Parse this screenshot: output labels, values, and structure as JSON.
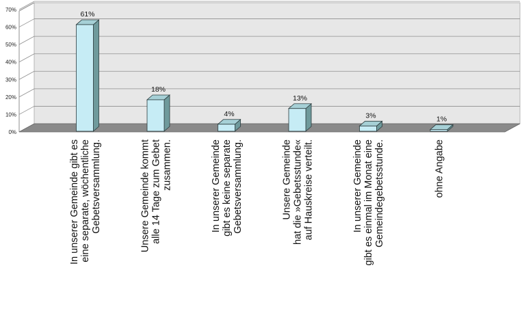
{
  "chart_data": {
    "type": "bar",
    "categories": [
      [
        "In unserer Gemeinde gibt es",
        "eine separate, wöchentliche",
        "Gebetsversammlung."
      ],
      [
        "Unsere Gemeinde kommt",
        "alle 14 Tage zum Gebet",
        "zusammen."
      ],
      [
        "In unserer Gemeinde",
        "gibt es keine separate",
        "Gebetsversammlung."
      ],
      [
        "Unsere Gemeinde",
        "hat die »Gebetsstunde«",
        "auf Hauskreise verteilt."
      ],
      [
        "In unserer Gemeinde",
        "gibt es einmal im Monat eine",
        "Gemeindegebetsstunde."
      ],
      [
        "ohne Angabe"
      ]
    ],
    "values": [
      61,
      18,
      4,
      13,
      3,
      1
    ],
    "data_labels": [
      "61%",
      "18%",
      "4%",
      "13%",
      "3%",
      "1%"
    ],
    "y_ticks": [
      "0%",
      "10%",
      "20%",
      "30%",
      "40%",
      "50%",
      "60%",
      "70%"
    ],
    "ylim": [
      0,
      70
    ],
    "grid": true,
    "legend": "none",
    "colors": {
      "bar_front": "#c6ecf5",
      "bar_side": "#6f9a9c",
      "bar_top": "#a6d0d6",
      "bar_stroke": "#2a3a3c",
      "wall": "#e7e7e7",
      "floor": "#8a8a8a",
      "grid": "#8f8f8f"
    }
  }
}
